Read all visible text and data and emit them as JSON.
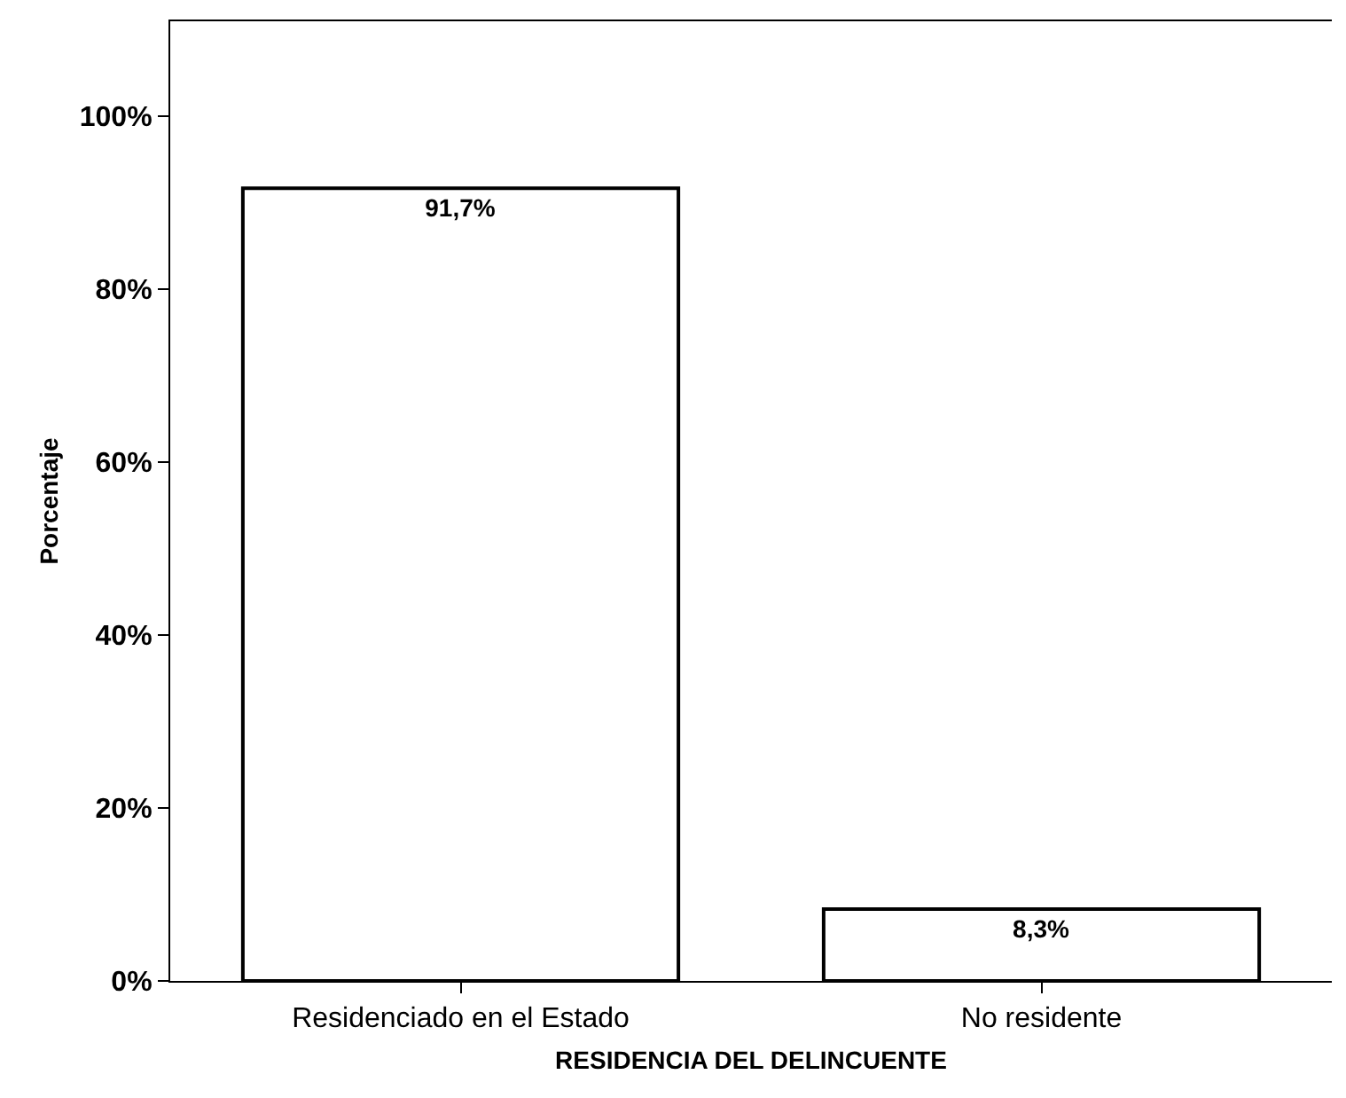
{
  "chart_data": {
    "type": "bar",
    "xlabel": "RESIDENCIA DEL DELINCUENTE",
    "ylabel": "Porcentaje",
    "categories": [
      "Residenciado en el Estado",
      "No residente"
    ],
    "values": [
      91.7,
      8.3
    ],
    "value_labels": [
      "91,7%",
      "8,3%"
    ],
    "color": "#ffffff",
    "ylim": [
      0,
      111
    ],
    "yticks": [
      {
        "value": 0,
        "label": "0%"
      },
      {
        "value": 20,
        "label": "20%"
      },
      {
        "value": 40,
        "label": "40%"
      },
      {
        "value": 60,
        "label": "60%"
      },
      {
        "value": 80,
        "label": "80%"
      },
      {
        "value": 100,
        "label": "100%"
      }
    ],
    "grid": false
  }
}
